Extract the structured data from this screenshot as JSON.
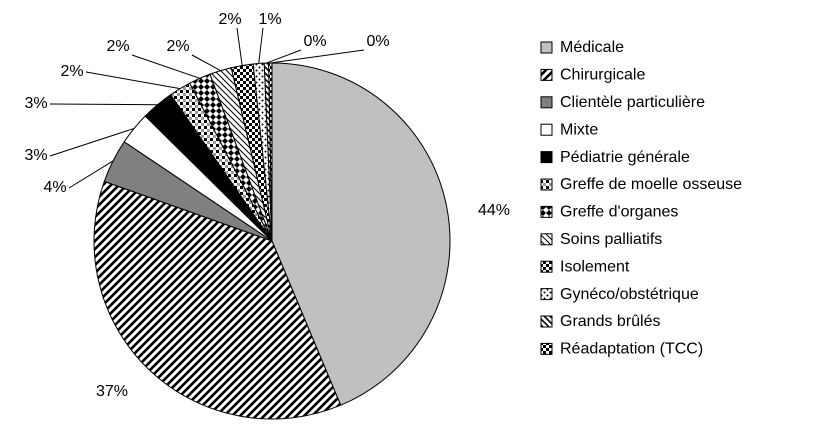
{
  "chart_data": {
    "type": "pie",
    "categories": [
      "Médicale",
      "Chirurgicale",
      "Clientèle particulière",
      "Mixte",
      "Pédiatrie générale",
      "Greffe de moelle osseuse",
      "Greffe d'organes",
      "Soins palliatifs",
      "Isolement",
      "Gynéco/obstétrique",
      "Grands brûlés",
      "Réadaptation (TCC)"
    ],
    "values": [
      44,
      37,
      4,
      3,
      3,
      2,
      2,
      2,
      2,
      1,
      0.4,
      0.3
    ],
    "value_labels": [
      "44%",
      "37%",
      "4%",
      "3%",
      "3%",
      "2%",
      "2%",
      "2%",
      "2%",
      "1%",
      "0%",
      "0%"
    ],
    "colors": [
      "#c0c0c0",
      "#000000",
      "#808080",
      "#ffffff",
      "#000000",
      "#000000",
      "#000000",
      "#000000",
      "#000000",
      "#000000",
      "#000000",
      "#000000"
    ],
    "legend": "right"
  }
}
